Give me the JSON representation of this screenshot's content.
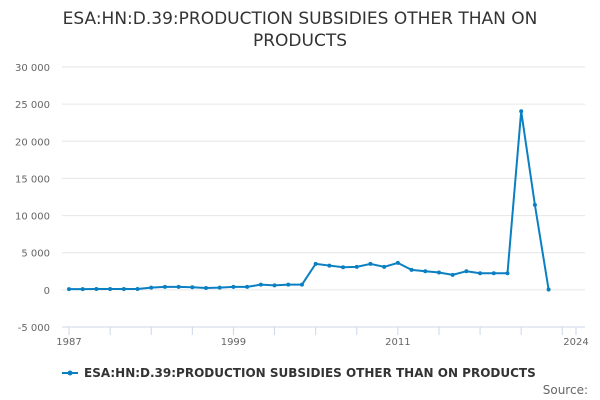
{
  "chart_data": {
    "type": "line",
    "title": "ESA:HN:D.39:PRODUCTION SUBSIDIES OTHER THAN ON PRODUCTS",
    "x": [
      1987,
      1988,
      1989,
      1990,
      1991,
      1992,
      1993,
      1994,
      1995,
      1996,
      1997,
      1998,
      1999,
      2000,
      2001,
      2002,
      2003,
      2004,
      2005,
      2006,
      2007,
      2008,
      2009,
      2010,
      2011,
      2012,
      2013,
      2014,
      2015,
      2016,
      2017,
      2018,
      2019,
      2020,
      2021,
      2022
    ],
    "series": [
      {
        "name": "ESA:HN:D.39:PRODUCTION SUBSIDIES OTHER THAN ON PRODUCTS",
        "color": "#0a7fc2",
        "values": [
          100,
          100,
          120,
          120,
          120,
          120,
          300,
          400,
          400,
          350,
          250,
          300,
          400,
          400,
          700,
          600,
          700,
          700,
          3500,
          3270,
          3050,
          3100,
          3500,
          3100,
          3630,
          2690,
          2510,
          2330,
          2020,
          2510,
          2240,
          2240,
          2240,
          24050,
          11440,
          50
        ]
      }
    ],
    "ylim": [
      -5000,
      30000
    ],
    "yticks": [
      -5000,
      0,
      5000,
      10000,
      15000,
      20000,
      25000,
      30000
    ],
    "ytick_labels": [
      "-5 000",
      "0",
      "5 000",
      "10 000",
      "15 000",
      "20 000",
      "25 000",
      "30 000"
    ],
    "xlim": [
      1987,
      2024
    ],
    "xtick_labels": [
      "1987",
      "1999",
      "2011",
      "2024"
    ],
    "grid": true,
    "legend": "bottom"
  },
  "source_label": "Source:"
}
